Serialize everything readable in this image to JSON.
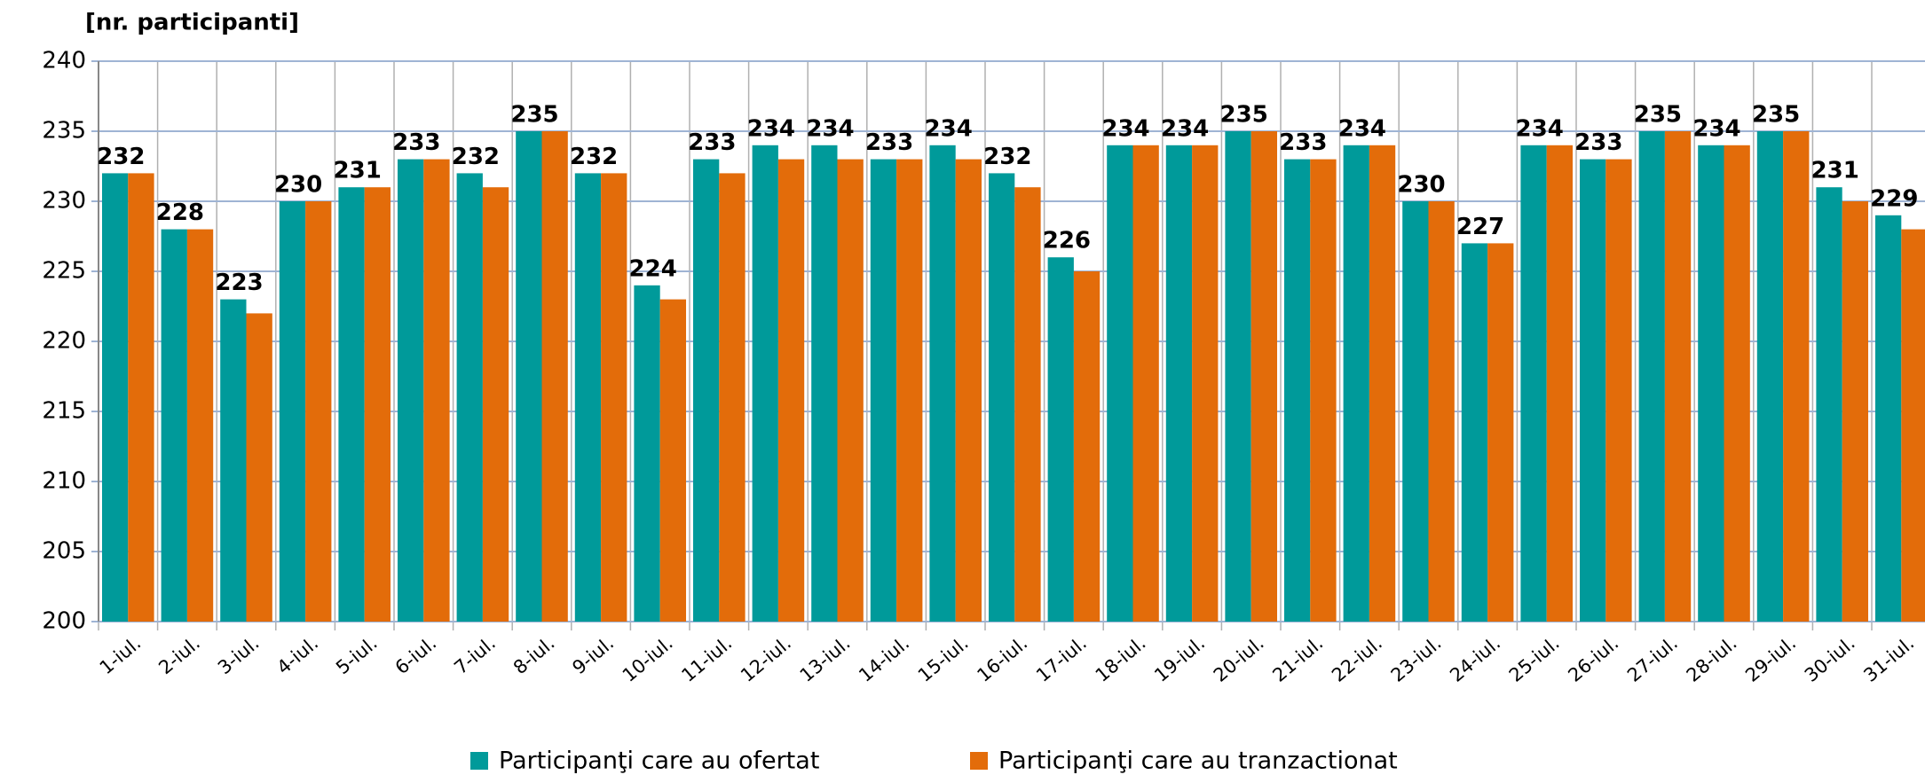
{
  "chart_data": {
    "type": "bar",
    "y_axis_label": "[nr. participanti]",
    "categories": [
      "1-iul.",
      "2-iul.",
      "3-iul.",
      "4-iul.",
      "5-iul.",
      "6-iul.",
      "7-iul.",
      "8-iul.",
      "9-iul.",
      "10-iul.",
      "11-iul.",
      "12-iul.",
      "13-iul.",
      "14-iul.",
      "15-iul.",
      "16-iul.",
      "17-iul.",
      "18-iul.",
      "19-iul.",
      "20-iul.",
      "21-iul.",
      "22-iul.",
      "23-iul.",
      "24-iul.",
      "25-iul.",
      "26-iul.",
      "27-iul.",
      "28-iul.",
      "29-iul.",
      "30-iul.",
      "31-iul."
    ],
    "series": [
      {
        "name": "Participanţi care au ofertat",
        "color": "#009a9a",
        "values": [
          232,
          228,
          223,
          230,
          231,
          233,
          232,
          235,
          232,
          224,
          233,
          234,
          234,
          233,
          234,
          232,
          226,
          234,
          234,
          235,
          233,
          234,
          230,
          227,
          234,
          233,
          235,
          234,
          235,
          231,
          229
        ]
      },
      {
        "name": "Participanţi care au tranzactionat",
        "color": "#e36c0a",
        "values": [
          232,
          228,
          222,
          230,
          231,
          233,
          231,
          235,
          232,
          223,
          232,
          233,
          233,
          233,
          233,
          231,
          225,
          234,
          234,
          235,
          233,
          234,
          230,
          227,
          234,
          233,
          235,
          234,
          235,
          230,
          228
        ]
      }
    ],
    "ylim": [
      200,
      240
    ],
    "yticks": [
      200,
      205,
      210,
      215,
      220,
      225,
      230,
      235,
      240
    ],
    "grid": true
  }
}
